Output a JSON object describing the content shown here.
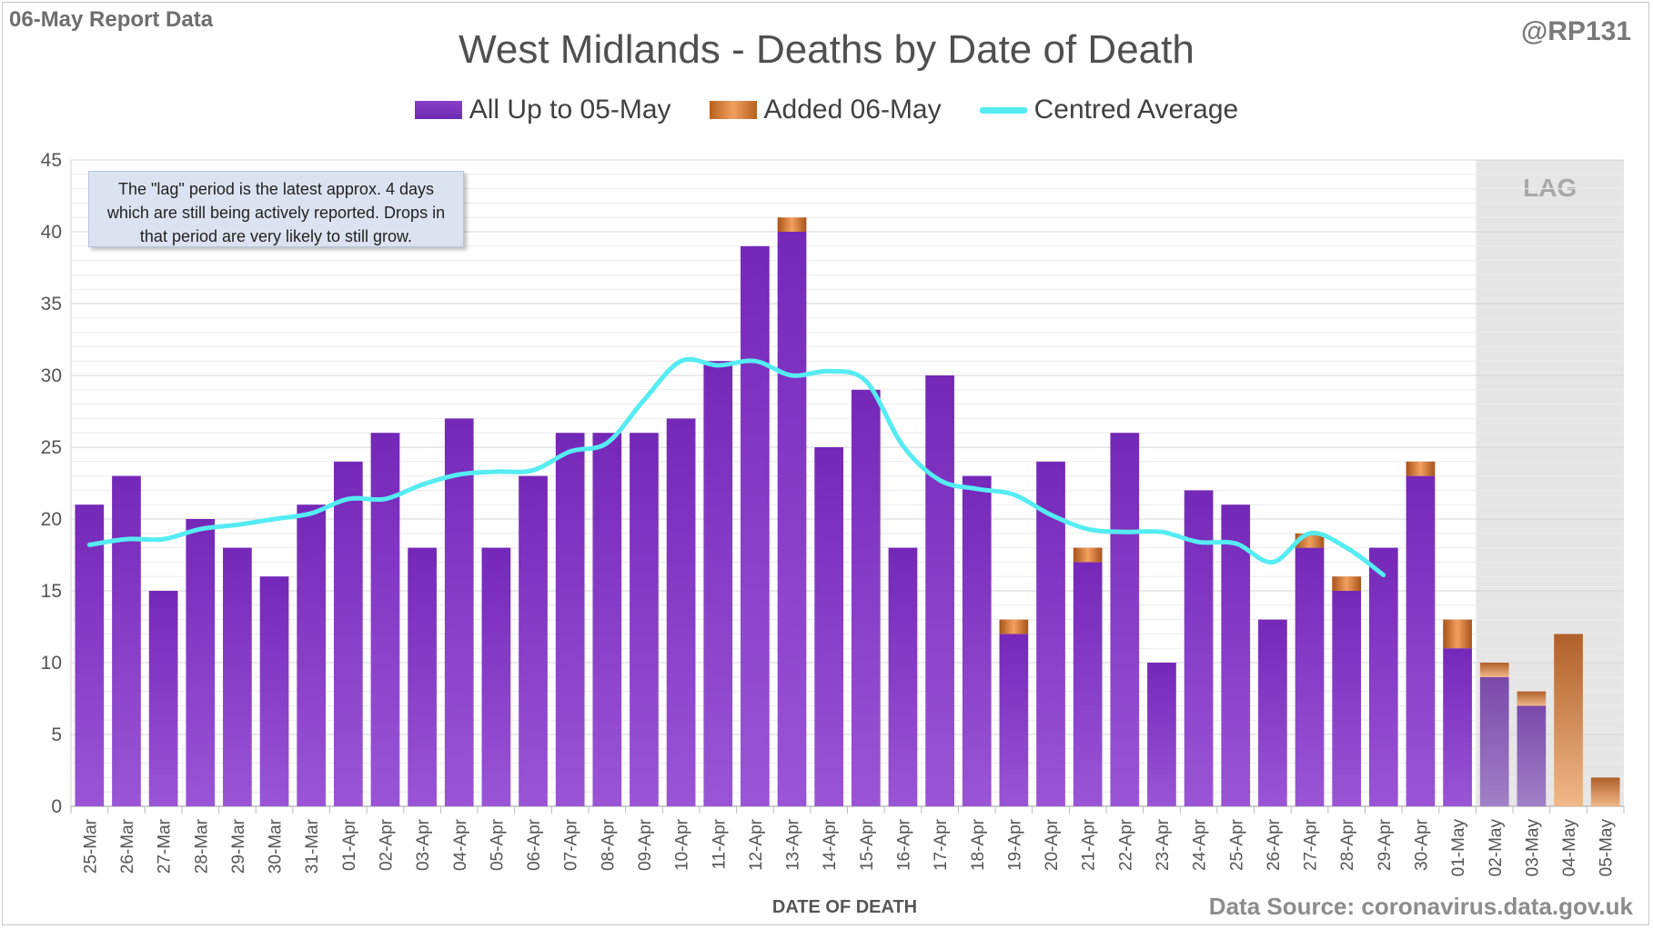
{
  "header": {
    "report_label": "06-May Report Data",
    "handle": "@RP131",
    "source": "Data Source: coronavirus.data.gov.uk"
  },
  "chart_data": {
    "type": "bar",
    "title": "West Midlands - Deaths by Date of Death",
    "xlabel": "DATE OF DEATH",
    "ylabel": "",
    "ylim": [
      0,
      45
    ],
    "yticks": [
      0,
      5,
      10,
      15,
      20,
      25,
      30,
      35,
      40,
      45
    ],
    "stacked": true,
    "grid": true,
    "legend_position": "top",
    "categories": [
      "25-Mar",
      "26-Mar",
      "27-Mar",
      "28-Mar",
      "29-Mar",
      "30-Mar",
      "31-Mar",
      "01-Apr",
      "02-Apr",
      "03-Apr",
      "04-Apr",
      "05-Apr",
      "06-Apr",
      "07-Apr",
      "08-Apr",
      "09-Apr",
      "10-Apr",
      "11-Apr",
      "12-Apr",
      "13-Apr",
      "14-Apr",
      "15-Apr",
      "16-Apr",
      "17-Apr",
      "18-Apr",
      "19-Apr",
      "20-Apr",
      "21-Apr",
      "22-Apr",
      "23-Apr",
      "24-Apr",
      "25-Apr",
      "26-Apr",
      "27-Apr",
      "28-Apr",
      "29-Apr",
      "30-Apr",
      "01-May",
      "02-May",
      "03-May",
      "04-May",
      "05-May"
    ],
    "series": [
      {
        "name": "All Up to 05-May",
        "kind": "bar",
        "color": "#7b32c0",
        "values": [
          21,
          23,
          15,
          20,
          18,
          16,
          21,
          24,
          26,
          18,
          27,
          18,
          23,
          26,
          26,
          26,
          27,
          31,
          39,
          40,
          25,
          29,
          18,
          30,
          23,
          12,
          24,
          17,
          26,
          10,
          22,
          21,
          13,
          18,
          15,
          18,
          23,
          11,
          9,
          7,
          0,
          0
        ]
      },
      {
        "name": "Added 06-May",
        "kind": "bar",
        "color": "#e07a30",
        "values": [
          0,
          0,
          0,
          0,
          0,
          0,
          0,
          0,
          0,
          0,
          0,
          0,
          0,
          0,
          0,
          0,
          0,
          0,
          0,
          1,
          0,
          0,
          0,
          0,
          0,
          1,
          0,
          1,
          0,
          0,
          0,
          0,
          0,
          1,
          1,
          0,
          1,
          2,
          1,
          1,
          12,
          2
        ]
      },
      {
        "name": "Centred Average",
        "kind": "line",
        "color": "#55ecf2",
        "values": [
          18.2,
          18.6,
          18.6,
          19.3,
          19.6,
          20.0,
          20.4,
          21.4,
          21.4,
          22.4,
          23.1,
          23.3,
          23.4,
          24.7,
          25.3,
          28.3,
          31.0,
          30.7,
          31.0,
          30.0,
          30.3,
          29.6,
          25.1,
          22.7,
          22.1,
          21.7,
          20.3,
          19.3,
          19.1,
          19.1,
          18.4,
          18.3,
          17.0,
          19.0,
          18.0,
          16.1,
          null,
          null,
          null,
          null,
          null,
          null
        ]
      }
    ],
    "lag_region": {
      "label": "LAG",
      "categories": [
        "02-May",
        "03-May",
        "04-May",
        "05-May"
      ]
    },
    "annotation": "The \"lag\" period is the latest approx. 4 days which are still being actively reported.  Drops in that period are very likely to still grow."
  },
  "colors": {
    "bar_main": "#7b32c0",
    "bar_added": "#e07a30",
    "average_line": "#55ecf2",
    "lag_shade": "#e6e6e6"
  }
}
